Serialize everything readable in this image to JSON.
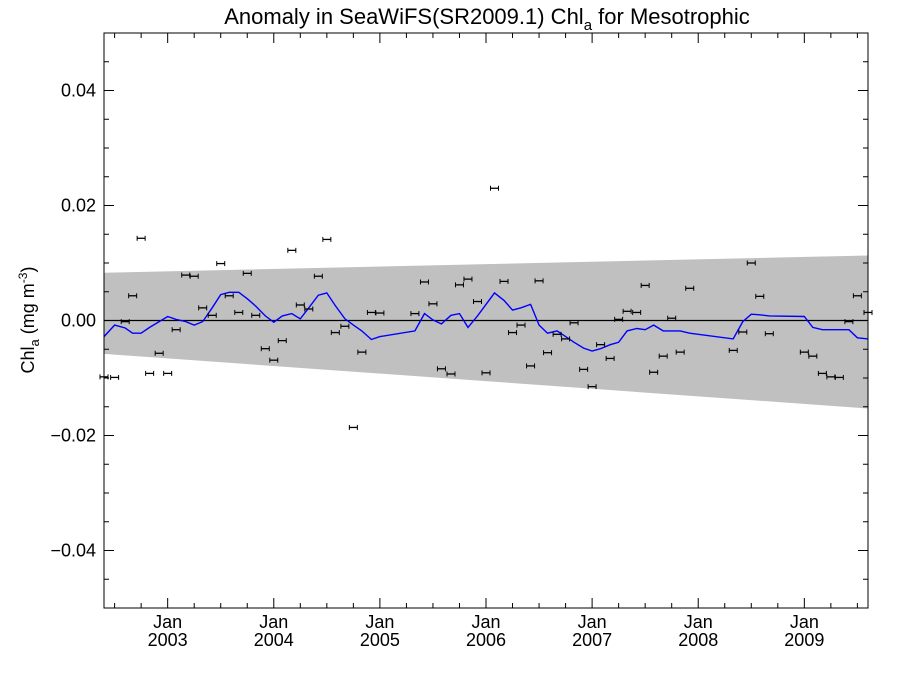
{
  "chart_data": {
    "type": "scatter",
    "title": "Anomaly in SeaWiFS(SR2009.1) Chl",
    "title_subscript": "a",
    "title_suffix": " for Mesotrophic",
    "ylabel_main": "Chl",
    "ylabel_sub": "a",
    "ylabel_units_pre": " (mg m",
    "ylabel_units_sup": "-3",
    "ylabel_units_post": ")",
    "xlim": [
      2002.4,
      2009.6
    ],
    "ylim": [
      -0.05,
      0.05
    ],
    "yticks": [
      {
        "value": 0.04,
        "label": "0.04"
      },
      {
        "value": 0.02,
        "label": "0.02"
      },
      {
        "value": 0.0,
        "label": "0.00"
      },
      {
        "value": -0.02,
        "label": "−0.02"
      },
      {
        "value": -0.04,
        "label": "−0.04"
      }
    ],
    "xticks": [
      {
        "value": 2003.0,
        "month": "Jan",
        "year": "2003"
      },
      {
        "value": 2004.0,
        "month": "Jan",
        "year": "2004"
      },
      {
        "value": 2005.0,
        "month": "Jan",
        "year": "2005"
      },
      {
        "value": 2006.0,
        "month": "Jan",
        "year": "2006"
      },
      {
        "value": 2007.0,
        "month": "Jan",
        "year": "2007"
      },
      {
        "value": 2008.0,
        "month": "Jan",
        "year": "2008"
      },
      {
        "value": 2009.0,
        "month": "Jan",
        "year": "2009"
      }
    ],
    "zero_line": 0.0,
    "confidence_band": {
      "color": "#c0c0c0",
      "x": [
        2002.4,
        2009.6
      ],
      "upper": [
        0.0083,
        0.0113
      ],
      "lower": [
        -0.0058,
        -0.0153
      ]
    },
    "trend_line": {
      "color": "#0000ff",
      "x": [
        2002.4,
        2002.5,
        2002.6,
        2002.67,
        2002.75,
        2002.83,
        2002.92,
        2003.0,
        2003.08,
        2003.17,
        2003.25,
        2003.33,
        2003.42,
        2003.5,
        2003.58,
        2003.67,
        2003.75,
        2003.83,
        2003.92,
        2004.0,
        2004.08,
        2004.17,
        2004.25,
        2004.33,
        2004.42,
        2004.5,
        2004.58,
        2004.67,
        2004.75,
        2004.83,
        2004.92,
        2005.0,
        2005.33,
        2005.42,
        2005.5,
        2005.58,
        2005.67,
        2005.75,
        2005.83,
        2005.92,
        2006.0,
        2006.08,
        2006.17,
        2006.25,
        2006.33,
        2006.42,
        2006.5,
        2006.58,
        2006.67,
        2006.75,
        2006.83,
        2006.92,
        2007.0,
        2007.08,
        2007.17,
        2007.25,
        2007.33,
        2007.42,
        2007.5,
        2007.58,
        2007.67,
        2007.75,
        2007.83,
        2007.92,
        2008.33,
        2008.42,
        2008.5,
        2008.58,
        2008.67,
        2009.0,
        2009.08,
        2009.17,
        2009.25,
        2009.33,
        2009.42,
        2009.5,
        2009.6
      ],
      "y": [
        -0.0028,
        -0.0008,
        -0.0013,
        -0.0022,
        -0.0022,
        -0.0012,
        -0.0002,
        0.0007,
        0.0002,
        -0.0002,
        -0.0008,
        -0.0002,
        0.0022,
        0.0045,
        0.0049,
        0.0049,
        0.0038,
        0.0025,
        0.0008,
        -0.0003,
        0.0008,
        0.0012,
        0.0003,
        0.0022,
        0.0044,
        0.0048,
        0.0026,
        0.0003,
        -0.0008,
        -0.0018,
        -0.0033,
        -0.0028,
        -0.0018,
        0.0012,
        0.0001,
        -0.0006,
        0.0009,
        0.0012,
        -0.0012,
        0.0008,
        0.0028,
        0.0048,
        0.0035,
        0.0018,
        0.0022,
        0.0028,
        -0.0008,
        -0.0022,
        -0.0018,
        -0.0028,
        -0.0038,
        -0.0048,
        -0.0053,
        -0.0049,
        -0.0042,
        -0.0038,
        -0.0018,
        -0.0014,
        -0.0016,
        -0.0008,
        -0.0018,
        -0.0018,
        -0.0018,
        -0.0022,
        -0.0032,
        -0.0002,
        0.0011,
        0.001,
        0.0008,
        0.0007,
        -0.0012,
        -0.0016,
        -0.0016,
        -0.0016,
        -0.0016,
        -0.003,
        -0.0032
      ]
    },
    "points": {
      "color": "#000000",
      "x": [
        2002.4,
        2002.5,
        2002.6,
        2002.67,
        2002.75,
        2002.83,
        2002.92,
        2003.0,
        2003.08,
        2003.17,
        2003.25,
        2003.33,
        2003.42,
        2003.5,
        2003.58,
        2003.67,
        2003.75,
        2003.83,
        2003.92,
        2004.0,
        2004.08,
        2004.17,
        2004.25,
        2004.33,
        2004.42,
        2004.5,
        2004.58,
        2004.67,
        2004.75,
        2004.83,
        2004.92,
        2005.0,
        2005.33,
        2005.42,
        2005.5,
        2005.58,
        2005.67,
        2005.75,
        2005.83,
        2005.92,
        2006.0,
        2006.08,
        2006.17,
        2006.25,
        2006.33,
        2006.42,
        2006.5,
        2006.58,
        2006.67,
        2006.75,
        2006.83,
        2006.92,
        2007.0,
        2007.08,
        2007.17,
        2007.25,
        2007.33,
        2007.42,
        2007.5,
        2007.58,
        2007.67,
        2007.75,
        2007.83,
        2007.92,
        2008.33,
        2008.42,
        2008.5,
        2008.58,
        2008.67,
        2009.0,
        2009.08,
        2009.17,
        2009.25,
        2009.33,
        2009.42,
        2009.5,
        2009.6
      ],
      "y": [
        -0.0098,
        -0.0099,
        -0.0002,
        0.0043,
        0.0143,
        -0.0092,
        -0.0057,
        -0.0092,
        -0.0016,
        0.0079,
        0.0077,
        0.0022,
        0.0009,
        0.0099,
        0.0043,
        0.0014,
        0.0082,
        0.0009,
        -0.0049,
        -0.0069,
        -0.0035,
        0.0122,
        0.0027,
        0.002,
        0.0077,
        0.0141,
        -0.0021,
        -0.001,
        -0.0186,
        -0.0055,
        0.0014,
        0.0013,
        0.0012,
        0.0067,
        0.0029,
        -0.0084,
        -0.0093,
        0.0062,
        0.0072,
        0.0033,
        -0.0091,
        0.023,
        0.0068,
        -0.0021,
        -0.0008,
        -0.0079,
        0.0069,
        -0.0056,
        -0.0024,
        -0.0032,
        -0.0004,
        -0.0085,
        -0.0115,
        -0.0042,
        -0.0066,
        0.0002,
        0.0016,
        0.0014,
        0.0061,
        -0.009,
        -0.0062,
        0.0004,
        -0.0055,
        0.0056,
        -0.0052,
        -0.002,
        0.01,
        0.0042,
        -0.0023,
        -0.0055,
        -0.0062,
        -0.0092,
        -0.0098,
        -0.0099,
        -0.0002,
        0.0043,
        0.0014
      ]
    },
    "grid": false,
    "legend": "none"
  }
}
